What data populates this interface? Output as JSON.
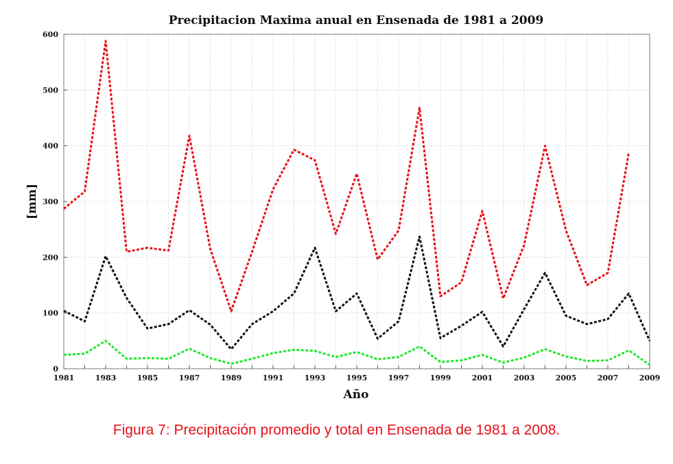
{
  "caption": "Figura 7: Precipitación promedio y total en Ensenada de 1981 a 2008.",
  "chart_data": {
    "type": "line",
    "title": "Precipitacion Maxima anual en Ensenada de 1981 a 2009",
    "xlabel": "Año",
    "ylabel": "[mm]",
    "xlim": [
      1981,
      2009
    ],
    "ylim": [
      0,
      600
    ],
    "grid": true,
    "line_style": "dashed",
    "x_ticks": [
      "1981",
      "1983",
      "1985",
      "1987",
      "1989",
      "1991",
      "1993",
      "1995",
      "1997",
      "1999",
      "2001",
      "2003",
      "2005",
      "2007",
      "2009"
    ],
    "y_ticks": [
      "0",
      "100",
      "200",
      "300",
      "400",
      "500",
      "600"
    ],
    "series": [
      {
        "color": "#e8101a",
        "x": [
          1981,
          1982,
          1983,
          1984,
          1985,
          1986,
          1987,
          1988,
          1989,
          1990,
          1991,
          1992,
          1993,
          1994,
          1995,
          1996,
          1997,
          1998,
          1999,
          2000,
          2001,
          2002,
          2003,
          2004,
          2005,
          2006,
          2007,
          2008
        ],
        "values": [
          287,
          318,
          588,
          210,
          217,
          212,
          418,
          215,
          103,
          210,
          322,
          393,
          374,
          242,
          350,
          196,
          248,
          468,
          130,
          155,
          283,
          126,
          222,
          400,
          248,
          150,
          172,
          387
        ]
      },
      {
        "color": "#111111",
        "x": [
          1981,
          1982,
          1983,
          1984,
          1985,
          1986,
          1987,
          1988,
          1989,
          1990,
          1991,
          1992,
          1993,
          1994,
          1995,
          1996,
          1997,
          1998,
          1999,
          2000,
          2001,
          2002,
          2003,
          2004,
          2005,
          2006,
          2007,
          2008,
          2009
        ],
        "values": [
          104,
          85,
          202,
          127,
          72,
          80,
          105,
          79,
          35,
          80,
          103,
          135,
          217,
          103,
          135,
          54,
          85,
          237,
          55,
          77,
          102,
          40,
          107,
          172,
          95,
          80,
          89,
          135,
          50
        ]
      },
      {
        "color": "#1ee82a",
        "x": [
          1981,
          1982,
          1983,
          1984,
          1985,
          1986,
          1987,
          1988,
          1989,
          1990,
          1991,
          1992,
          1993,
          1994,
          1995,
          1996,
          1997,
          1998,
          1999,
          2000,
          2001,
          2002,
          2003,
          2004,
          2005,
          2006,
          2007,
          2008,
          2009
        ],
        "values": [
          25,
          27,
          50,
          18,
          19,
          18,
          36,
          19,
          9,
          18,
          28,
          34,
          32,
          21,
          30,
          17,
          21,
          40,
          12,
          15,
          25,
          11,
          20,
          35,
          22,
          14,
          15,
          33,
          7
        ]
      }
    ]
  }
}
